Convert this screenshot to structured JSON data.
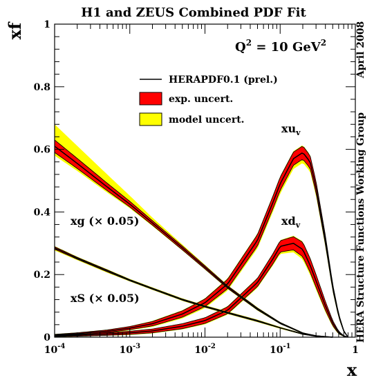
{
  "chart_data": {
    "type": "line",
    "title": "H1 and ZEUS Combined PDF Fit",
    "ylabel": "xf",
    "xlabel": "x",
    "xscale": "log",
    "xlim": [
      0.0001,
      1
    ],
    "ylim": [
      0,
      1
    ],
    "x_ticks": [
      {
        "value": 0.0001,
        "base": "10",
        "exp": "-4"
      },
      {
        "value": 0.001,
        "base": "10",
        "exp": "-3"
      },
      {
        "value": 0.01,
        "base": "10",
        "exp": "-2"
      },
      {
        "value": 0.1,
        "base": "10",
        "exp": "-1"
      },
      {
        "value": 1,
        "base": "1",
        "exp": ""
      }
    ],
    "y_ticks": [
      {
        "value": 0,
        "label": "0"
      },
      {
        "value": 0.2,
        "label": "0.2"
      },
      {
        "value": 0.4,
        "label": "0.4"
      },
      {
        "value": 0.6,
        "label": "0.6"
      },
      {
        "value": 0.8,
        "label": "0.8"
      },
      {
        "value": 1,
        "label": "1"
      }
    ],
    "q2_label": {
      "base": "Q",
      "sup1": "2",
      "mid": " = 10 GeV",
      "sup2": "2"
    },
    "side_labels": {
      "top": "April 2008",
      "bottom": "HERA Structure Functions Working Group"
    },
    "legend": {
      "position": "top-center",
      "entries": [
        {
          "label": "HERAPDF0.1 (prel.)",
          "style": "line",
          "color": "#000000"
        },
        {
          "label": "exp. uncert.",
          "style": "box",
          "color": "#ff0000"
        },
        {
          "label": "model uncert.",
          "style": "box",
          "color": "#ffff00"
        }
      ]
    },
    "colors": {
      "central": "#000000",
      "exp_band": "#ff0000",
      "model_band": "#ffff00"
    },
    "curve_labels": {
      "xuv": {
        "main": "xu",
        "sub": "v"
      },
      "xdv": {
        "main": "xd",
        "sub": "v"
      },
      "xg": {
        "main": "xg",
        "rest": " (× 0.05)"
      },
      "xs": {
        "main": "xS",
        "rest": " (× 0.05)"
      }
    },
    "series": [
      {
        "id": "xuv",
        "name": "xu_v",
        "x": [
          0.0001,
          0.0002,
          0.0005,
          0.001,
          0.002,
          0.005,
          0.01,
          0.02,
          0.05,
          0.08,
          0.1,
          0.15,
          0.2,
          0.25,
          0.3,
          0.4,
          0.5,
          0.6,
          0.7,
          0.8
        ],
        "y": [
          0.007,
          0.011,
          0.019,
          0.029,
          0.043,
          0.074,
          0.11,
          0.17,
          0.31,
          0.43,
          0.49,
          0.57,
          0.59,
          0.56,
          0.48,
          0.31,
          0.16,
          0.07,
          0.02,
          0.0
        ],
        "exp_err": [
          0.002,
          0.003,
          0.004,
          0.005,
          0.007,
          0.01,
          0.012,
          0.015,
          0.018,
          0.02,
          0.021,
          0.021,
          0.021,
          0.02,
          0.018,
          0.014,
          0.009,
          0.005,
          0.002,
          0.0
        ],
        "model_low_extra": [
          0.001,
          0.001,
          0.002,
          0.002,
          0.003,
          0.004,
          0.005,
          0.006,
          0.008,
          0.01,
          0.011,
          0.012,
          0.012,
          0.011,
          0.01,
          0.008,
          0.006,
          0.004,
          0.002,
          0.0
        ],
        "model_high_extra": [
          0.001,
          0.001,
          0.001,
          0.001,
          0.002,
          0.002,
          0.002,
          0.003,
          0.003,
          0.003,
          0.003,
          0.003,
          0.003,
          0.003,
          0.003,
          0.003,
          0.002,
          0.002,
          0.001,
          0.0
        ]
      },
      {
        "id": "xdv",
        "name": "xd_v",
        "x": [
          0.0001,
          0.0002,
          0.0005,
          0.001,
          0.002,
          0.005,
          0.01,
          0.02,
          0.05,
          0.08,
          0.1,
          0.15,
          0.2,
          0.25,
          0.3,
          0.4,
          0.5,
          0.6,
          0.7,
          0.8
        ],
        "y": [
          0.004,
          0.006,
          0.01,
          0.014,
          0.02,
          0.035,
          0.053,
          0.086,
          0.175,
          0.25,
          0.29,
          0.3,
          0.28,
          0.23,
          0.18,
          0.1,
          0.045,
          0.015,
          0.004,
          0.0
        ],
        "exp_err": [
          0.002,
          0.003,
          0.004,
          0.005,
          0.006,
          0.008,
          0.009,
          0.011,
          0.013,
          0.016,
          0.018,
          0.021,
          0.023,
          0.022,
          0.02,
          0.014,
          0.008,
          0.004,
          0.001,
          0.0
        ],
        "model_low_extra": [
          0.001,
          0.001,
          0.001,
          0.002,
          0.002,
          0.002,
          0.003,
          0.003,
          0.004,
          0.005,
          0.006,
          0.008,
          0.009,
          0.009,
          0.008,
          0.006,
          0.004,
          0.002,
          0.001,
          0.0
        ],
        "model_high_extra": [
          0.001,
          0.001,
          0.001,
          0.001,
          0.001,
          0.001,
          0.001,
          0.002,
          0.002,
          0.002,
          0.002,
          0.003,
          0.003,
          0.003,
          0.003,
          0.002,
          0.002,
          0.001,
          0.0,
          0.0
        ]
      },
      {
        "id": "xg",
        "name": "xg (× 0.05)",
        "x": [
          0.0001,
          0.0002,
          0.0005,
          0.001,
          0.002,
          0.005,
          0.01,
          0.02,
          0.05,
          0.1,
          0.2,
          0.3,
          0.5
        ],
        "y": [
          0.61,
          0.555,
          0.48,
          0.425,
          0.365,
          0.285,
          0.223,
          0.16,
          0.09,
          0.045,
          0.013,
          0.004,
          0.0
        ],
        "exp_err": [
          0.02,
          0.016,
          0.012,
          0.009,
          0.007,
          0.006,
          0.005,
          0.004,
          0.003,
          0.002,
          0.001,
          0.001,
          0.0
        ],
        "model_low_extra": [
          0.01,
          0.008,
          0.006,
          0.004,
          0.003,
          0.002,
          0.002,
          0.002,
          0.002,
          0.001,
          0.001,
          0.0,
          0.0
        ],
        "model_high_extra": [
          0.05,
          0.04,
          0.028,
          0.018,
          0.01,
          0.005,
          0.003,
          0.002,
          0.002,
          0.001,
          0.001,
          0.0,
          0.0
        ]
      },
      {
        "id": "xs",
        "name": "xS (× 0.05)",
        "x": [
          0.0001,
          0.0002,
          0.0005,
          0.001,
          0.002,
          0.005,
          0.01,
          0.02,
          0.05,
          0.1,
          0.2,
          0.3,
          0.5
        ],
        "y": [
          0.285,
          0.252,
          0.212,
          0.182,
          0.155,
          0.12,
          0.098,
          0.078,
          0.052,
          0.03,
          0.01,
          0.003,
          0.0
        ],
        "exp_err": [
          0.004,
          0.003,
          0.003,
          0.002,
          0.002,
          0.002,
          0.002,
          0.002,
          0.002,
          0.001,
          0.001,
          0.0,
          0.0
        ],
        "model_low_extra": [
          0.004,
          0.003,
          0.003,
          0.002,
          0.002,
          0.002,
          0.002,
          0.002,
          0.002,
          0.002,
          0.001,
          0.0,
          0.0
        ],
        "model_high_extra": [
          0.002,
          0.002,
          0.002,
          0.002,
          0.002,
          0.002,
          0.002,
          0.002,
          0.002,
          0.002,
          0.001,
          0.0,
          0.0
        ]
      }
    ]
  }
}
